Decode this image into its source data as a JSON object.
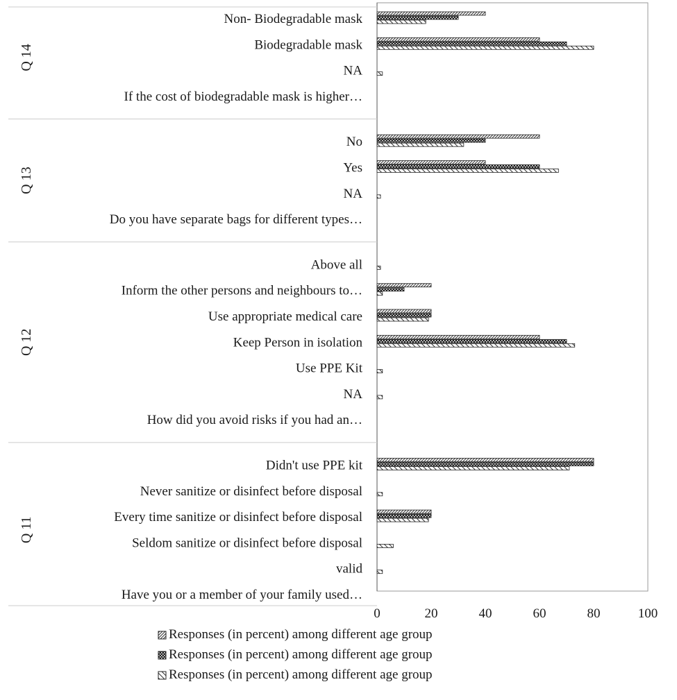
{
  "chart_data": {
    "type": "bar",
    "orientation": "horizontal",
    "xlim": [
      0,
      100
    ],
    "xticks": [
      0,
      20,
      40,
      60,
      80,
      100
    ],
    "grid": false,
    "legend_position": "bottom",
    "groups": [
      {
        "label": "Q 14",
        "categories": [
          {
            "label": "Non- Biodegradable mask",
            "values": [
              40,
              30,
              18
            ]
          },
          {
            "label": "Biodegradable  mask",
            "values": [
              60,
              70,
              80
            ]
          },
          {
            "label": "NA",
            "values": [
              0,
              0,
              2
            ]
          },
          {
            "label": "If the cost of biodegradable mask is higher…",
            "values": [
              null,
              null,
              null
            ]
          }
        ]
      },
      {
        "label": "Q 13",
        "categories": [
          {
            "label": "No",
            "values": [
              60,
              40,
              32
            ]
          },
          {
            "label": "Yes",
            "values": [
              40,
              60,
              67
            ]
          },
          {
            "label": "NA",
            "values": [
              0,
              0,
              1
            ]
          },
          {
            "label": "Do you have separate bags for different types…",
            "values": [
              null,
              null,
              null
            ]
          }
        ]
      },
      {
        "label": "Q 12",
        "categories": [
          {
            "label": "Above all",
            "values": [
              0,
              0,
              1
            ]
          },
          {
            "label": "Inform the other persons and neighbours to…",
            "values": [
              20,
              10,
              2
            ]
          },
          {
            "label": "Use appropriate medical care",
            "values": [
              20,
              20,
              19
            ]
          },
          {
            "label": "Keep Person in isolation",
            "values": [
              60,
              70,
              73
            ]
          },
          {
            "label": "Use PPE Kit",
            "values": [
              0,
              0,
              2
            ]
          },
          {
            "label": "NA",
            "values": [
              0,
              0,
              2
            ]
          },
          {
            "label": "How did you avoid risks if you had an…",
            "values": [
              null,
              null,
              null
            ]
          }
        ]
      },
      {
        "label": "Q 11",
        "categories": [
          {
            "label": "Didn't use PPE kit",
            "values": [
              80,
              80,
              71
            ]
          },
          {
            "label": "Never sanitize or disinfect before disposal",
            "values": [
              0,
              0,
              2
            ]
          },
          {
            "label": "Every time sanitize or disinfect before disposal",
            "values": [
              20,
              20,
              19
            ]
          },
          {
            "label": "Seldom sanitize or disinfect before disposal",
            "values": [
              0,
              0,
              6
            ]
          },
          {
            "label": "valid",
            "values": [
              0,
              0,
              2
            ]
          },
          {
            "label": "Have you or a member of your family used…",
            "values": [
              null,
              null,
              null
            ]
          }
        ]
      }
    ],
    "series": [
      {
        "name": "Responses (in percent) among different age group",
        "pattern": "diagonal-hatch",
        "color": "#333333"
      },
      {
        "name": "Responses (in percent) among different age group",
        "pattern": "checker-dark",
        "color": "#222222"
      },
      {
        "name": "Responses (in percent) among different age group",
        "pattern": "wide-hatch",
        "color": "#333333"
      }
    ]
  }
}
